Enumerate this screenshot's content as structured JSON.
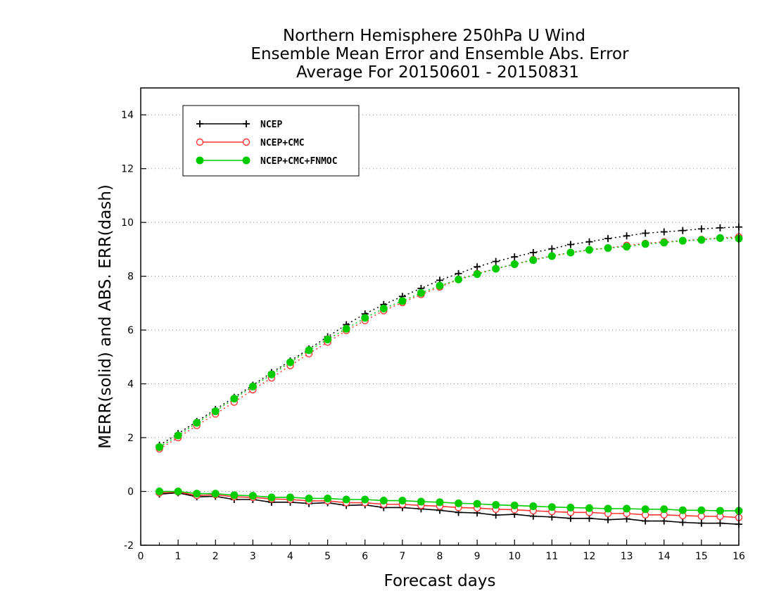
{
  "chart_data": {
    "type": "line",
    "title_lines": [
      "Northern Hemisphere 250hPa U Wind",
      "Ensemble Mean Error and Ensemble Abs. Error",
      "Average For 20150601 - 20150831"
    ],
    "xlabel": "Forecast days",
    "ylabel": "MERR(solid) and ABS. ERR(dash)",
    "xlim": [
      0,
      16
    ],
    "ylim": [
      -2,
      15
    ],
    "x_ticks": [
      "0",
      "1",
      "2",
      "3",
      "4",
      "5",
      "6",
      "7",
      "8",
      "9",
      "10",
      "11",
      "12",
      "13",
      "14",
      "15",
      "16"
    ],
    "y_ticks": [
      "-2",
      "0",
      "2",
      "4",
      "6",
      "8",
      "10",
      "12",
      "14"
    ],
    "y_tick_values": [
      -2,
      0,
      2,
      4,
      6,
      8,
      10,
      12,
      14
    ],
    "grid": "horizontal dotted",
    "legend_position": "top-left",
    "x": [
      0.5,
      1,
      1.5,
      2,
      2.5,
      3,
      3.5,
      4,
      4.5,
      5,
      5.5,
      6,
      6.5,
      7,
      7.5,
      8,
      8.5,
      9,
      9.5,
      10,
      10.5,
      11,
      11.5,
      12,
      12.5,
      13,
      13.5,
      14,
      14.5,
      15,
      15.5,
      16
    ],
    "series": [
      {
        "name": "NCEP",
        "color": "#000000",
        "marker": "plus",
        "abs_err": [
          1.72,
          2.15,
          2.6,
          3.05,
          3.5,
          3.95,
          4.42,
          4.85,
          5.3,
          5.75,
          6.2,
          6.6,
          6.95,
          7.25,
          7.55,
          7.85,
          8.1,
          8.35,
          8.55,
          8.72,
          8.88,
          9.02,
          9.18,
          9.28,
          9.4,
          9.5,
          9.6,
          9.65,
          9.7,
          9.76,
          9.8,
          9.83
        ],
        "mean_err": [
          -0.1,
          -0.05,
          -0.2,
          -0.18,
          -0.3,
          -0.3,
          -0.4,
          -0.4,
          -0.45,
          -0.42,
          -0.52,
          -0.5,
          -0.6,
          -0.6,
          -0.65,
          -0.7,
          -0.78,
          -0.8,
          -0.88,
          -0.85,
          -0.92,
          -0.95,
          -1.0,
          -1.0,
          -1.05,
          -1.02,
          -1.1,
          -1.1,
          -1.15,
          -1.18,
          -1.18,
          -1.22
        ]
      },
      {
        "name": "NCEP+CMC",
        "color": "#ff3333",
        "marker": "open-circle",
        "abs_err": [
          1.58,
          2.0,
          2.45,
          2.88,
          3.32,
          3.78,
          4.22,
          4.68,
          5.12,
          5.55,
          5.98,
          6.35,
          6.72,
          7.02,
          7.32,
          7.6,
          7.88,
          8.1,
          8.28,
          8.45,
          8.62,
          8.75,
          8.88,
          8.98,
          9.05,
          9.15,
          9.22,
          9.28,
          9.32,
          9.37,
          9.42,
          9.46
        ],
        "mean_err": [
          -0.05,
          -0.02,
          -0.15,
          -0.12,
          -0.2,
          -0.22,
          -0.28,
          -0.3,
          -0.35,
          -0.35,
          -0.42,
          -0.42,
          -0.48,
          -0.48,
          -0.52,
          -0.55,
          -0.6,
          -0.62,
          -0.66,
          -0.68,
          -0.72,
          -0.75,
          -0.78,
          -0.78,
          -0.82,
          -0.82,
          -0.87,
          -0.87,
          -0.9,
          -0.92,
          -0.93,
          -0.97
        ]
      },
      {
        "name": "NCEP+CMC+FNMOC",
        "color": "#00cc00",
        "marker": "filled-circle",
        "abs_err": [
          1.65,
          2.08,
          2.55,
          2.98,
          3.45,
          3.9,
          4.35,
          4.8,
          5.25,
          5.65,
          6.05,
          6.45,
          6.8,
          7.08,
          7.38,
          7.65,
          7.88,
          8.08,
          8.28,
          8.45,
          8.6,
          8.75,
          8.88,
          8.98,
          9.05,
          9.1,
          9.2,
          9.25,
          9.32,
          9.35,
          9.42,
          9.4
        ],
        "mean_err": [
          0.0,
          0.0,
          -0.08,
          -0.08,
          -0.14,
          -0.16,
          -0.22,
          -0.22,
          -0.26,
          -0.26,
          -0.3,
          -0.3,
          -0.34,
          -0.34,
          -0.38,
          -0.4,
          -0.44,
          -0.46,
          -0.5,
          -0.52,
          -0.55,
          -0.58,
          -0.6,
          -0.62,
          -0.64,
          -0.64,
          -0.66,
          -0.66,
          -0.7,
          -0.7,
          -0.72,
          -0.72
        ]
      }
    ]
  }
}
